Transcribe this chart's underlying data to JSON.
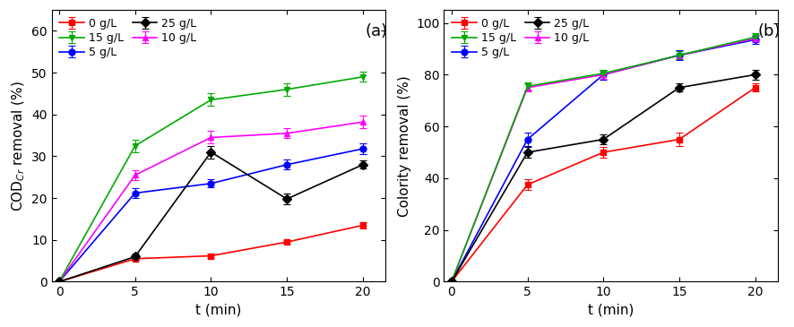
{
  "x": [
    0,
    5,
    10,
    15,
    20
  ],
  "panel_a": {
    "title": "(a)",
    "ylabel": "COD$_{Cr}$ removal (%)",
    "xlabel": "t (min)",
    "ylim": [
      0,
      65
    ],
    "yticks": [
      0,
      10,
      20,
      30,
      40,
      50,
      60
    ],
    "series": [
      {
        "label": "0 g/L",
        "color": "#ff0000",
        "marker": "s",
        "y": [
          0,
          5.5,
          6.2,
          9.5,
          13.5
        ],
        "yerr": [
          0,
          0.5,
          0.5,
          0.5,
          0.8
        ]
      },
      {
        "label": "5 g/L",
        "color": "#0000ff",
        "marker": "o",
        "y": [
          0,
          21.2,
          23.5,
          28.0,
          31.8
        ],
        "yerr": [
          0,
          1.2,
          1.0,
          1.2,
          1.2
        ]
      },
      {
        "label": "10 g/L",
        "color": "#ff00ff",
        "marker": "^",
        "y": [
          0,
          25.5,
          34.5,
          35.5,
          38.2
        ],
        "yerr": [
          0,
          1.2,
          1.5,
          1.2,
          1.5
        ]
      },
      {
        "label": "15 g/L",
        "color": "#00aa00",
        "marker": "v",
        "y": [
          0,
          32.5,
          43.5,
          46.0,
          49.0
        ],
        "yerr": [
          0,
          1.5,
          1.5,
          1.5,
          1.2
        ]
      },
      {
        "label": "25 g/L",
        "color": "#000000",
        "marker": "D",
        "y": [
          0,
          6.0,
          31.0,
          19.8,
          28.0
        ],
        "yerr": [
          0,
          0.8,
          1.5,
          1.2,
          1.0
        ]
      }
    ]
  },
  "panel_b": {
    "title": "(b)",
    "ylabel": "Colority removal (%)",
    "xlabel": "t (min)",
    "ylim": [
      0,
      105
    ],
    "yticks": [
      0,
      20,
      40,
      60,
      80,
      100
    ],
    "series": [
      {
        "label": "0 g/L",
        "color": "#ff0000",
        "marker": "s",
        "y": [
          0,
          37.5,
          50.0,
          55.0,
          75.0
        ],
        "yerr": [
          0,
          2.0,
          2.0,
          2.5,
          1.5
        ]
      },
      {
        "label": "5 g/L",
        "color": "#0000ff",
        "marker": "o",
        "y": [
          0,
          55.0,
          80.0,
          87.5,
          93.5
        ],
        "yerr": [
          0,
          2.5,
          2.0,
          2.0,
          1.5
        ]
      },
      {
        "label": "10 g/L",
        "color": "#ff00ff",
        "marker": "^",
        "y": [
          0,
          75.0,
          80.0,
          87.5,
          94.0
        ],
        "yerr": [
          0,
          1.5,
          1.5,
          1.5,
          1.5
        ]
      },
      {
        "label": "15 g/L",
        "color": "#00aa00",
        "marker": "v",
        "y": [
          0,
          75.5,
          80.5,
          87.5,
          94.5
        ],
        "yerr": [
          0,
          1.5,
          1.5,
          1.5,
          1.5
        ]
      },
      {
        "label": "25 g/L",
        "color": "#000000",
        "marker": "D",
        "y": [
          0,
          50.0,
          55.0,
          75.0,
          80.0
        ],
        "yerr": [
          0,
          2.0,
          2.0,
          1.5,
          2.0
        ]
      }
    ]
  }
}
